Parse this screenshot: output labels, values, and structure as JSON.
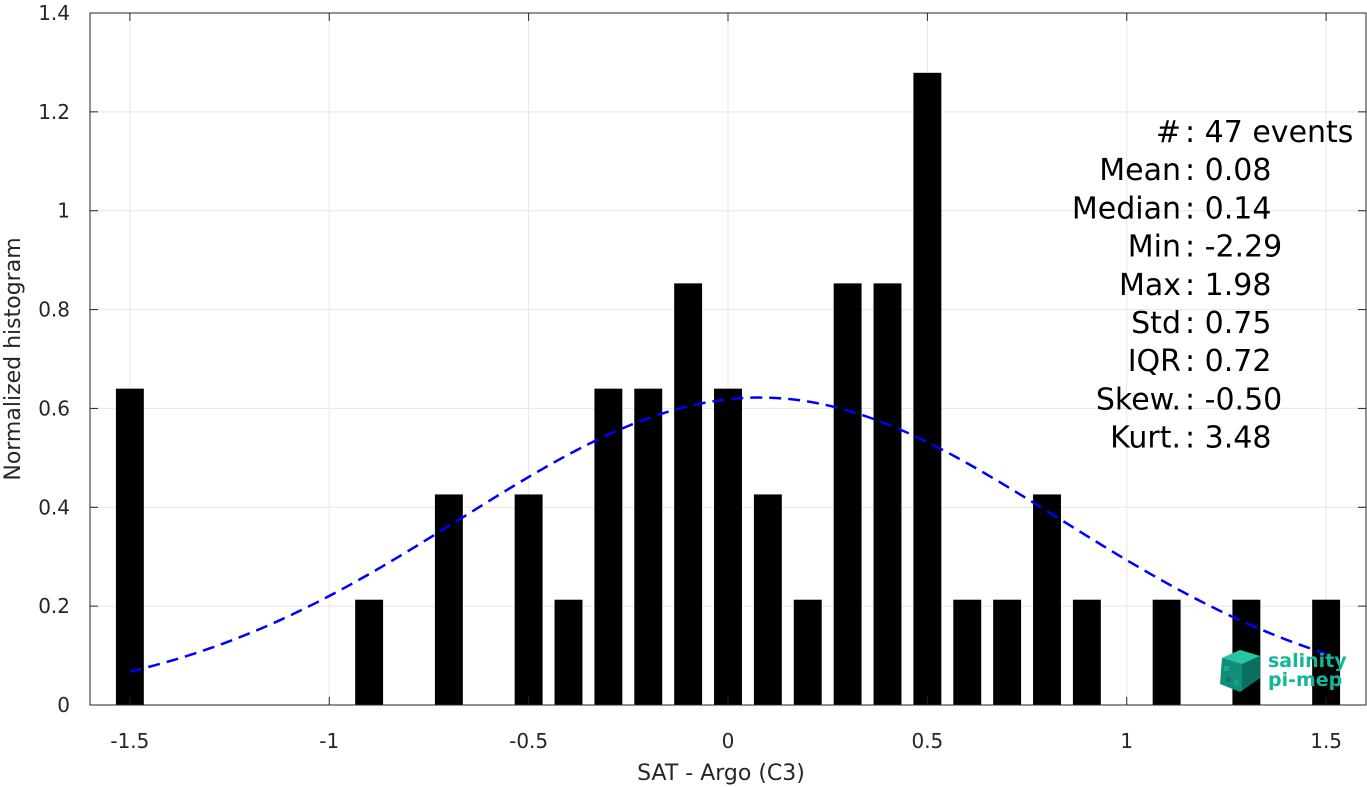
{
  "chart_data": {
    "type": "bar",
    "xlabel": "SAT - Argo (C3)",
    "ylabel": "Normalized histogram",
    "xlim": [
      -1.6,
      1.6
    ],
    "ylim": [
      0,
      1.4
    ],
    "xticks": [
      {
        "value": -1.5,
        "label": "-1.5"
      },
      {
        "value": -1,
        "label": "-1"
      },
      {
        "value": -0.5,
        "label": "-0.5"
      },
      {
        "value": 0,
        "label": "0"
      },
      {
        "value": 0.5,
        "label": "0.5"
      },
      {
        "value": 1,
        "label": "1"
      },
      {
        "value": 1.5,
        "label": "1.5"
      }
    ],
    "yticks": [
      {
        "value": 0,
        "label": "0"
      },
      {
        "value": 0.2,
        "label": "0.2"
      },
      {
        "value": 0.4,
        "label": "0.4"
      },
      {
        "value": 0.6,
        "label": "0.6"
      },
      {
        "value": 0.8,
        "label": "0.8"
      },
      {
        "value": 1,
        "label": "1"
      },
      {
        "value": 1.2,
        "label": "1.2"
      },
      {
        "value": 1.4,
        "label": "1.4"
      }
    ],
    "grid": true,
    "bar_color": "#000000",
    "bars": [
      {
        "x": -1.5,
        "value": 0.64
      },
      {
        "x": -0.9,
        "value": 0.213
      },
      {
        "x": -0.7,
        "value": 0.426
      },
      {
        "x": -0.5,
        "value": 0.426
      },
      {
        "x": -0.4,
        "value": 0.213
      },
      {
        "x": -0.3,
        "value": 0.64
      },
      {
        "x": -0.2,
        "value": 0.64
      },
      {
        "x": -0.1,
        "value": 0.853
      },
      {
        "x": 0.0,
        "value": 0.64
      },
      {
        "x": 0.1,
        "value": 0.426
      },
      {
        "x": 0.2,
        "value": 0.213
      },
      {
        "x": 0.3,
        "value": 0.853
      },
      {
        "x": 0.4,
        "value": 0.853
      },
      {
        "x": 0.5,
        "value": 1.279
      },
      {
        "x": 0.6,
        "value": 0.213
      },
      {
        "x": 0.7,
        "value": 0.213
      },
      {
        "x": 0.8,
        "value": 0.426
      },
      {
        "x": 0.9,
        "value": 0.213
      },
      {
        "x": 1.1,
        "value": 0.213
      },
      {
        "x": 1.3,
        "value": 0.213
      },
      {
        "x": 1.5,
        "value": 0.213
      }
    ],
    "bar_width": 0.07,
    "fit_curve": {
      "type": "normal",
      "mean": 0.08,
      "std": 0.75,
      "peak": 0.622,
      "x_range": [
        -1.5,
        1.5
      ],
      "color": "#0000ff",
      "style": "dashed"
    },
    "stats": [
      {
        "key": "#  ",
        "sep": ": ",
        "value": "47 events"
      },
      {
        "key": "Mean ",
        "sep": ": ",
        "value": "0.08"
      },
      {
        "key": "Median ",
        "sep": ": ",
        "value": "0.14"
      },
      {
        "key": "Min ",
        "sep": ": ",
        "value": "-2.29"
      },
      {
        "key": "Max ",
        "sep": ": ",
        "value": "1.98"
      },
      {
        "key": "Std ",
        "sep": ": ",
        "value": "0.75"
      },
      {
        "key": "IQR ",
        "sep": ": ",
        "value": "0.72"
      },
      {
        "key": "Skew. ",
        "sep": ": ",
        "value": "-0.50"
      },
      {
        "key": "Kurt. ",
        "sep": ": ",
        "value": "3.48"
      }
    ],
    "stats_placement": "top-right"
  },
  "logo": {
    "line1": "salinity",
    "line2": "pi-mep",
    "color": "#16b59a",
    "icon": "salinity-cube-icon"
  }
}
